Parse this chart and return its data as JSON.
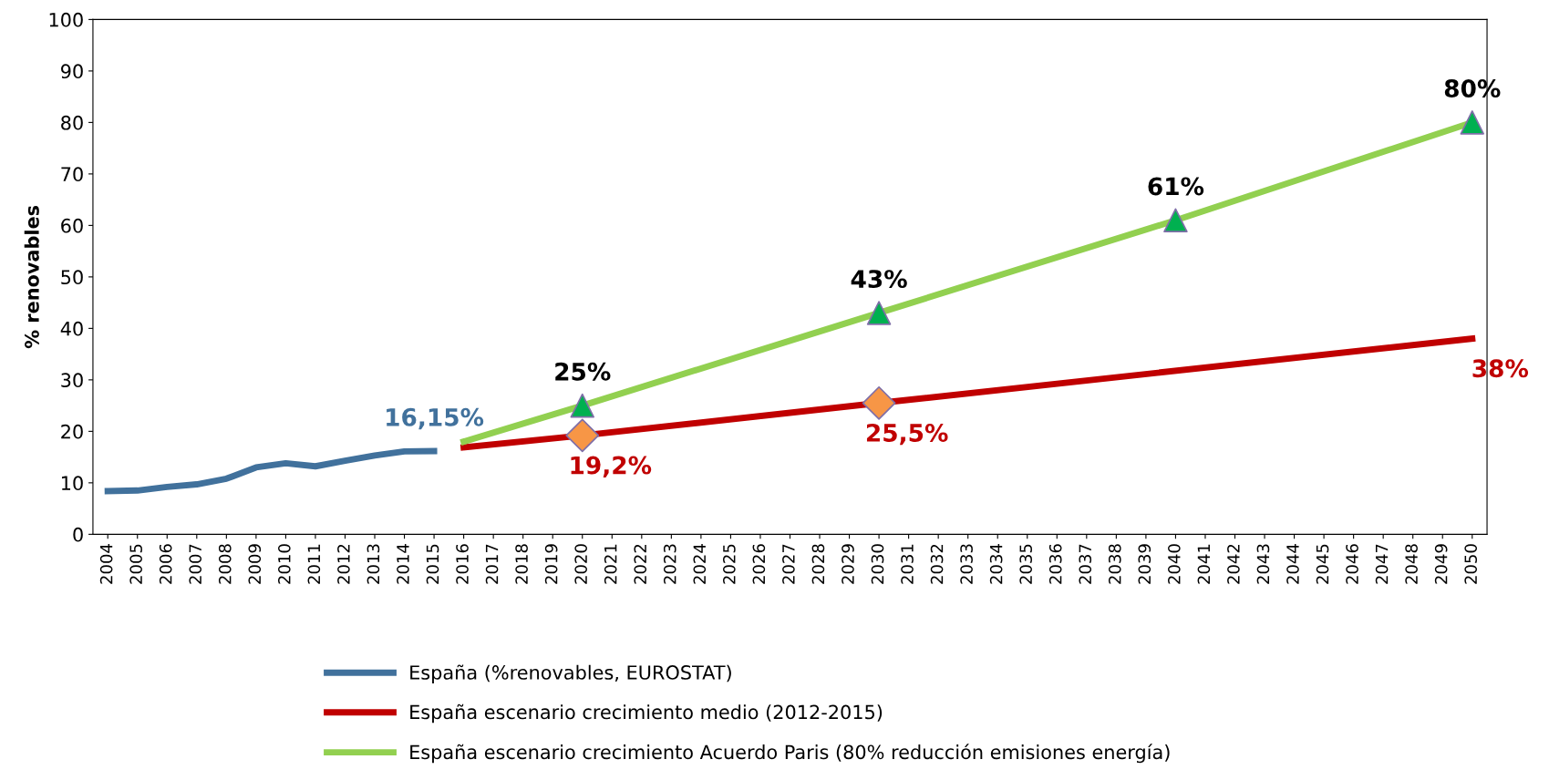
{
  "chart_data": {
    "type": "line",
    "ylabel": "% renovables",
    "categories": [
      "2004",
      "2005",
      "2006",
      "2007",
      "2008",
      "2009",
      "2010",
      "2011",
      "2012",
      "2013",
      "2014",
      "2015",
      "2016",
      "2017",
      "2018",
      "2019",
      "2020",
      "2021",
      "2022",
      "2023",
      "2024",
      "2025",
      "2026",
      "2027",
      "2028",
      "2029",
      "2030",
      "2031",
      "2032",
      "2033",
      "2034",
      "2035",
      "2036",
      "2037",
      "2038",
      "2039",
      "2040",
      "2041",
      "2042",
      "2043",
      "2044",
      "2045",
      "2046",
      "2047",
      "2048",
      "2049",
      "2050"
    ],
    "ylim": [
      0,
      100
    ],
    "yticks": [
      0,
      10,
      20,
      30,
      40,
      50,
      60,
      70,
      80,
      90,
      100
    ],
    "grid": false,
    "legend": "bottom",
    "series": [
      {
        "name": "España (%renovables, EUROSTAT)",
        "color": "#41719c",
        "values": [
          8.4,
          8.5,
          9.2,
          9.7,
          10.8,
          13.0,
          13.8,
          13.2,
          14.3,
          15.3,
          16.1,
          16.15,
          null,
          null,
          null,
          null,
          null,
          null,
          null,
          null,
          null,
          null,
          null,
          null,
          null,
          null,
          null,
          null,
          null,
          null,
          null,
          null,
          null,
          null,
          null,
          null,
          null,
          null,
          null,
          null,
          null,
          null,
          null,
          null,
          null,
          null,
          null
        ],
        "value_labels": [
          null,
          null,
          null,
          null,
          null,
          null,
          null,
          null,
          null,
          null,
          null,
          "16,15%",
          null,
          null,
          null,
          null,
          null,
          null,
          null,
          null,
          null,
          null,
          null,
          null,
          null,
          null,
          null,
          null,
          null,
          null,
          null,
          null,
          null,
          null,
          null,
          null,
          null,
          null,
          null,
          null,
          null,
          null,
          null,
          null,
          null,
          null,
          null
        ]
      },
      {
        "name": "España escenario crecimiento medio (2012-2015)",
        "color": "#c00000",
        "values": [
          null,
          null,
          null,
          null,
          null,
          null,
          null,
          null,
          null,
          null,
          null,
          null,
          16.9,
          null,
          null,
          null,
          19.2,
          null,
          null,
          null,
          null,
          null,
          null,
          null,
          null,
          null,
          25.5,
          null,
          null,
          null,
          null,
          null,
          null,
          null,
          null,
          null,
          null,
          null,
          null,
          null,
          null,
          null,
          null,
          null,
          null,
          null,
          38
        ],
        "value_labels": [
          null,
          null,
          null,
          null,
          null,
          null,
          null,
          null,
          null,
          null,
          null,
          null,
          null,
          null,
          null,
          null,
          "19,2%",
          null,
          null,
          null,
          null,
          null,
          null,
          null,
          null,
          null,
          "25,5%",
          null,
          null,
          null,
          null,
          null,
          null,
          null,
          null,
          null,
          null,
          null,
          null,
          null,
          null,
          null,
          null,
          null,
          null,
          null,
          "38%"
        ]
      },
      {
        "name": "España escenario crecimiento Acuerdo Paris (80% reducción emisiones energía)",
        "color": "#92d050",
        "values": [
          null,
          null,
          null,
          null,
          null,
          null,
          null,
          null,
          null,
          null,
          null,
          null,
          18,
          null,
          null,
          null,
          25,
          null,
          null,
          null,
          null,
          null,
          null,
          null,
          null,
          null,
          43,
          null,
          null,
          null,
          null,
          null,
          null,
          null,
          null,
          null,
          61,
          null,
          null,
          null,
          null,
          null,
          null,
          null,
          null,
          null,
          80
        ],
        "value_labels": [
          null,
          null,
          null,
          null,
          null,
          null,
          null,
          null,
          null,
          null,
          null,
          null,
          null,
          null,
          null,
          null,
          "25%",
          null,
          null,
          null,
          null,
          null,
          null,
          null,
          null,
          null,
          "43%",
          null,
          null,
          null,
          null,
          null,
          null,
          null,
          null,
          null,
          "61%",
          null,
          null,
          null,
          null,
          null,
          null,
          null,
          null,
          null,
          "80%"
        ]
      },
      {
        "type": "scatter",
        "marker": "diamond",
        "color": "#f79646",
        "values": [
          null,
          null,
          null,
          null,
          null,
          null,
          null,
          null,
          null,
          null,
          null,
          null,
          null,
          null,
          null,
          null,
          19.2,
          null,
          null,
          null,
          null,
          null,
          null,
          null,
          null,
          null,
          25.5,
          null,
          null,
          null,
          null,
          null,
          null,
          null,
          null,
          null,
          null,
          null,
          null,
          null,
          null,
          null,
          null,
          null,
          null,
          null,
          null
        ]
      },
      {
        "type": "scatter",
        "marker": "triangle",
        "color": "#00b050",
        "values": [
          null,
          null,
          null,
          null,
          null,
          null,
          null,
          null,
          null,
          null,
          null,
          null,
          null,
          null,
          null,
          null,
          25,
          null,
          null,
          null,
          null,
          null,
          null,
          null,
          null,
          null,
          43,
          null,
          null,
          null,
          null,
          null,
          null,
          null,
          null,
          null,
          61,
          null,
          null,
          null,
          null,
          null,
          null,
          null,
          null,
          null,
          80
        ]
      }
    ]
  }
}
